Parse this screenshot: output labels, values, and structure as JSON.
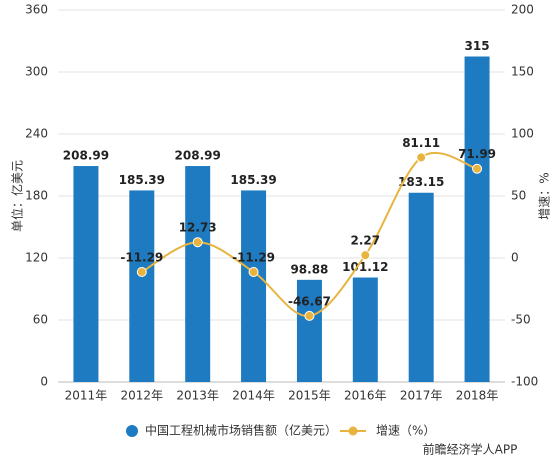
{
  "chart_data": {
    "type": "bar_line",
    "categories": [
      "2011年",
      "2012年",
      "2013年",
      "2014年",
      "2015年",
      "2016年",
      "2017年",
      "2018年"
    ],
    "series": [
      {
        "name": "中国工程机械市场销售额（亿美元）",
        "color": "#1f7bc1",
        "type": "bar",
        "values": [
          208.99,
          185.39,
          208.99,
          185.39,
          98.88,
          101.12,
          183.15,
          315
        ]
      },
      {
        "name": "增速（%）",
        "color": "#e8b33e",
        "type": "line",
        "axis": "y2",
        "values": [
          null,
          -11.29,
          12.73,
          -11.29,
          -46.67,
          2.27,
          81.11,
          71.99
        ]
      }
    ],
    "ylabel": "单位：亿美元",
    "y2label": "增速：%",
    "ylim": [
      0,
      360
    ],
    "yticks": [
      0,
      60,
      120,
      180,
      240,
      300,
      360
    ],
    "y2lim": [
      -100,
      200
    ],
    "y2ticks": [
      -100,
      -50,
      0,
      50,
      100,
      150,
      200
    ],
    "grid": true,
    "legend": "bottom",
    "watermark": "前瞻经济学人APP"
  }
}
